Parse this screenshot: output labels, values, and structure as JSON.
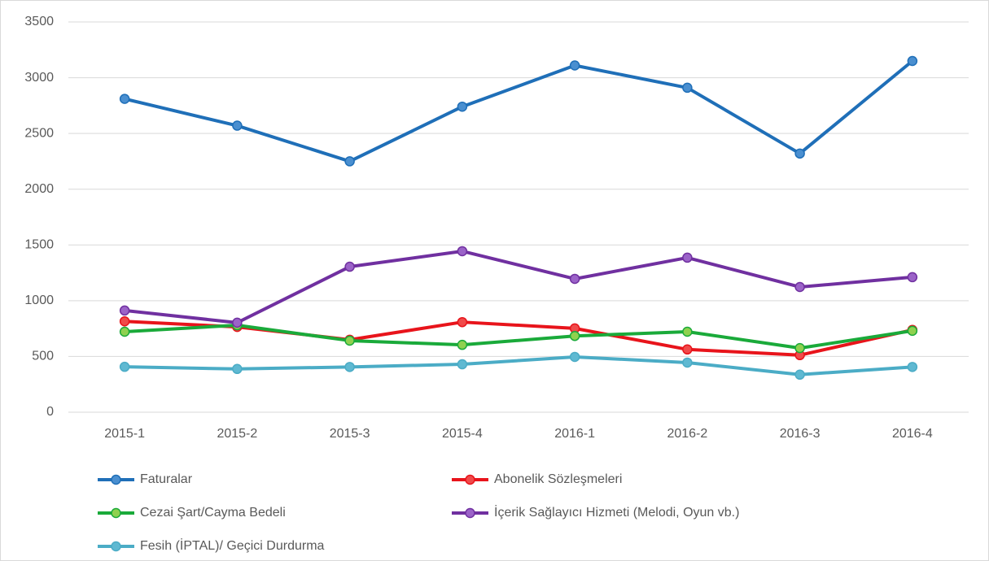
{
  "chart_data": {
    "type": "line",
    "categories": [
      "2015-1",
      "2015-2",
      "2015-3",
      "2015-4",
      "2016-1",
      "2016-2",
      "2016-3",
      "2016-4"
    ],
    "series": [
      {
        "name": "Faturalar",
        "color": "#1f6fb8",
        "marker_color": "#4a8fd0",
        "values": [
          2810,
          2570,
          2250,
          2740,
          3110,
          2910,
          2320,
          3150
        ]
      },
      {
        "name": "Abonelik Sözleşmeleri",
        "color": "#e8141b",
        "marker_color": "#f04a4a",
        "values": [
          815,
          765,
          650,
          808,
          752,
          563,
          512,
          738
        ]
      },
      {
        "name": "Cezai Şart/Cayma Bedeli",
        "color": "#1aaa3a",
        "marker_color": "#8fd14f",
        "values": [
          722,
          780,
          642,
          604,
          684,
          722,
          575,
          730
        ]
      },
      {
        "name": "İçerik Sağlayıcı Hizmeti (Melodi, Oyun vb.)",
        "color": "#7030a0",
        "marker_color": "#9b63c8",
        "values": [
          912,
          803,
          1305,
          1444,
          1196,
          1386,
          1123,
          1211
        ]
      },
      {
        "name": "Fesih (İPTAL)/ Geçici Durdurma",
        "color": "#4bacc6",
        "marker_color": "#5fb9d2",
        "values": [
          407,
          388,
          406,
          430,
          496,
          445,
          337,
          406
        ]
      }
    ],
    "ylim": [
      0,
      3500
    ],
    "yticks": [
      0,
      500,
      1000,
      1500,
      2000,
      2500,
      3000,
      3500
    ],
    "grid": true
  }
}
